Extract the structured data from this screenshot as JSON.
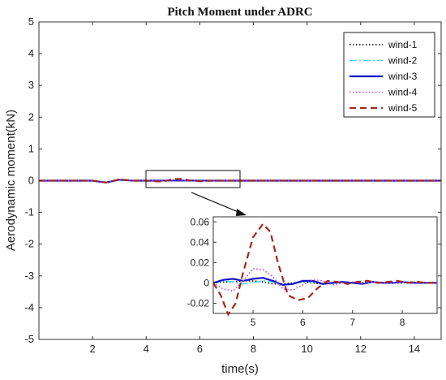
{
  "chart_data": {
    "type": "line",
    "title": "Pitch Moment under ADRC",
    "xlabel": "time(s)",
    "ylabel": "Aerodynamic moment(kN)",
    "xlim": [
      0,
      15
    ],
    "ylim": [
      -5,
      5
    ],
    "xticks": [
      "2",
      "4",
      "6",
      "8",
      "10",
      "12",
      "14"
    ],
    "yticks": [
      "5",
      "4",
      "3",
      "2",
      "1",
      "0",
      "-1",
      "-2",
      "-3",
      "-4",
      "-5"
    ],
    "grid": false,
    "legend_position": "top-right",
    "series": [
      {
        "name": "wind-1",
        "color": "#000000",
        "style": "dotted",
        "x": [
          0,
          1,
          2,
          2.5,
          3,
          3.5,
          4,
          5,
          6,
          8,
          10,
          12,
          14,
          15
        ],
        "y": [
          0,
          0,
          0,
          -0.05,
          0.03,
          0,
          0,
          0.002,
          0,
          0,
          0,
          0,
          0,
          0
        ]
      },
      {
        "name": "wind-2",
        "color": "#44d7e6",
        "style": "dashdot",
        "x": [
          0,
          1,
          2,
          2.5,
          3,
          3.5,
          4,
          5,
          6,
          8,
          10,
          12,
          14,
          15
        ],
        "y": [
          0,
          0,
          0,
          -0.05,
          0.03,
          0,
          0,
          0.003,
          0,
          0,
          0,
          0,
          0,
          0
        ]
      },
      {
        "name": "wind-3",
        "color": "#1414c8",
        "style": "solid",
        "x": [
          0,
          1,
          2,
          2.5,
          3,
          3.5,
          4,
          5,
          6,
          8,
          10,
          12,
          14,
          15
        ],
        "y": [
          0,
          0,
          0,
          -0.06,
          0.03,
          0,
          0,
          0.005,
          0,
          0,
          0,
          0,
          0,
          0
        ]
      },
      {
        "name": "wind-4",
        "color": "#b43cf0",
        "style": "dotted",
        "x": [
          0,
          1,
          2,
          2.5,
          3,
          3.5,
          4,
          5,
          6,
          8,
          10,
          12,
          14,
          15
        ],
        "y": [
          0,
          0,
          0,
          -0.06,
          0.04,
          0,
          0,
          0.015,
          -0.005,
          0,
          0,
          0,
          0,
          0
        ]
      },
      {
        "name": "wind-5",
        "color": "#a0281e",
        "style": "dashed",
        "x": [
          0,
          1,
          2,
          2.5,
          3,
          3.5,
          4,
          4.6,
          5,
          5.3,
          5.8,
          6.5,
          8,
          10,
          12,
          14,
          15
        ],
        "y": [
          0,
          0,
          0,
          -0.06,
          0.04,
          0,
          0,
          -0.03,
          0.045,
          0.055,
          -0.015,
          0,
          0,
          0,
          0,
          0,
          0
        ]
      }
    ],
    "inset": {
      "xlim": [
        4.2,
        8.7
      ],
      "ylim": [
        -0.03,
        0.065
      ],
      "xticks": [
        "5",
        "6",
        "7",
        "8"
      ],
      "yticks": [
        "0.06",
        "0.04",
        "0.02",
        "0",
        "-0.02"
      ],
      "zoom_region": {
        "xlim": [
          4.2,
          7.6
        ],
        "ylim": [
          -0.3,
          0.25
        ]
      },
      "series": [
        {
          "name": "wind-1",
          "x": [
            4.2,
            4.4,
            4.6,
            4.8,
            5.0,
            5.2,
            5.4,
            5.6,
            5.8,
            6.0,
            6.2,
            6.4,
            6.6,
            6.8,
            7.0,
            7.2,
            7.4,
            7.6,
            7.8,
            8.0,
            8.2,
            8.4,
            8.7
          ],
          "y": [
            0,
            0.001,
            0.001,
            0.002,
            0.002,
            0.001,
            -0.001,
            -0.001,
            0,
            0.001,
            0,
            -0.001,
            0,
            0.001,
            0,
            0,
            0.001,
            0,
            0,
            0,
            0.001,
            0,
            0
          ]
        },
        {
          "name": "wind-2",
          "x": [
            4.2,
            4.4,
            4.6,
            4.8,
            5.0,
            5.2,
            5.4,
            5.6,
            5.8,
            6.0,
            6.2,
            6.4,
            6.6,
            6.8,
            7.0,
            7.2,
            7.4,
            7.6,
            7.8,
            8.0,
            8.2,
            8.4,
            8.7
          ],
          "y": [
            0,
            0.002,
            0.001,
            -0.001,
            0,
            0.002,
            0.001,
            -0.002,
            -0.001,
            0.001,
            0.001,
            -0.001,
            0,
            0.001,
            0,
            -0.001,
            0.001,
            0,
            0,
            0.001,
            0,
            0,
            0
          ]
        },
        {
          "name": "wind-3",
          "x": [
            4.2,
            4.4,
            4.6,
            4.8,
            5.0,
            5.2,
            5.4,
            5.6,
            5.8,
            6.0,
            6.2,
            6.4,
            6.6,
            6.8,
            7.0,
            7.2,
            7.4,
            7.6,
            7.8,
            8.0,
            8.2,
            8.4,
            8.7
          ],
          "y": [
            0,
            0.003,
            0.004,
            0.002,
            0.004,
            0.005,
            0.002,
            -0.002,
            -0.001,
            0.002,
            0.002,
            -0.001,
            0,
            0.001,
            0,
            -0.001,
            0.001,
            0,
            0,
            0.001,
            0,
            0,
            0
          ]
        },
        {
          "name": "wind-4",
          "x": [
            4.2,
            4.4,
            4.6,
            4.8,
            5.0,
            5.2,
            5.4,
            5.6,
            5.8,
            6.0,
            6.2,
            6.4,
            6.6,
            6.8,
            7.0,
            7.2,
            7.4,
            7.6,
            7.8,
            8.0,
            8.2,
            8.4,
            8.7
          ],
          "y": [
            0,
            -0.006,
            -0.008,
            0.002,
            0.014,
            0.013,
            0.006,
            -0.006,
            -0.007,
            -0.002,
            0.003,
            0.002,
            -0.002,
            0,
            0.001,
            -0.001,
            0.001,
            0,
            0,
            0.001,
            0,
            0,
            0
          ]
        },
        {
          "name": "wind-5",
          "x": [
            4.2,
            4.35,
            4.5,
            4.65,
            4.8,
            5.0,
            5.2,
            5.35,
            5.5,
            5.7,
            5.9,
            6.1,
            6.3,
            6.5,
            6.7,
            6.9,
            7.1,
            7.3,
            7.5,
            7.7,
            7.9,
            8.1,
            8.3,
            8.5,
            8.7
          ],
          "y": [
            0,
            -0.012,
            -0.031,
            -0.02,
            0.01,
            0.045,
            0.058,
            0.05,
            0.02,
            -0.012,
            -0.017,
            -0.015,
            -0.005,
            0.002,
            0.001,
            -0.001,
            0.001,
            0.002,
            0,
            0.001,
            0.002,
            0,
            0.001,
            0,
            0
          ]
        }
      ]
    }
  }
}
